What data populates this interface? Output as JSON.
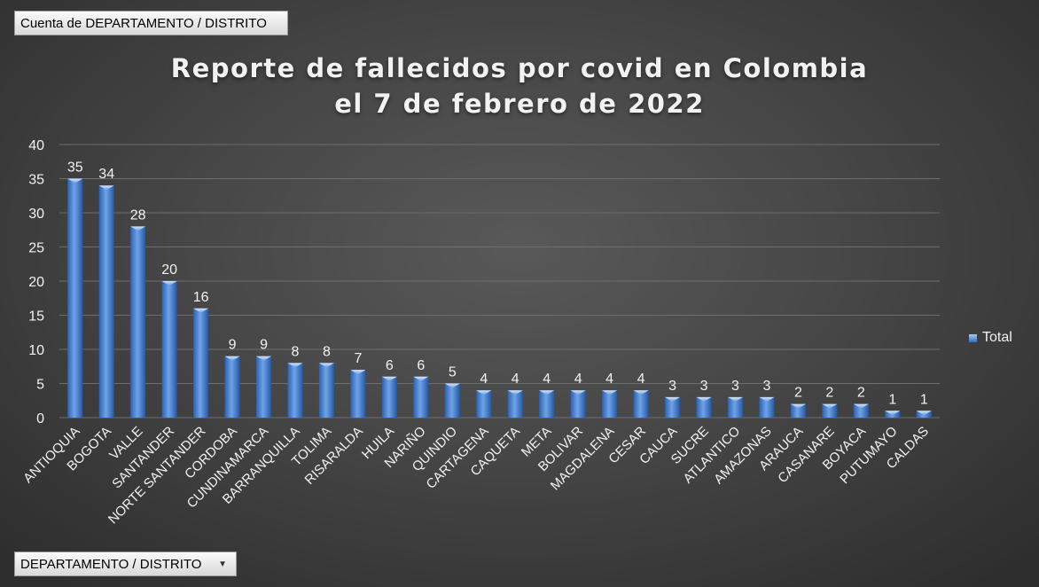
{
  "pivot": {
    "value_field": "Cuenta de DEPARTAMENTO / DISTRITO",
    "axis_field": "DEPARTAMENTO / DISTRITO"
  },
  "colors": {
    "bar_light": "#a9c8f3",
    "bar_dark": "#2f6dc4",
    "background": "#474747",
    "text": "#f2f2f2"
  },
  "chart_data": {
    "type": "bar",
    "title_line1": "Reporte de fallecidos por covid en Colombia",
    "title_line2": "el 7 de febrero de 2022",
    "categories": [
      "ANTIOQUIA",
      "BOGOTA",
      "VALLE",
      "SANTANDER",
      "NORTE SANTANDER",
      "CORDOBA",
      "CUNDINAMARCA",
      "BARRANQUILLA",
      "TOLIMA",
      "RISARALDA",
      "HUILA",
      "NARIÑO",
      "QUINDIO",
      "CARTAGENA",
      "CAQUETA",
      "META",
      "BOLIVAR",
      "MAGDALENA",
      "CESAR",
      "CAUCA",
      "SUCRE",
      "ATLANTICO",
      "AMAZONAS",
      "ARAUCA",
      "CASANARE",
      "BOYACA",
      "PUTUMAYO",
      "CALDAS"
    ],
    "series": [
      {
        "name": "Total",
        "values": [
          35,
          34,
          28,
          20,
          16,
          9,
          9,
          8,
          8,
          7,
          6,
          6,
          5,
          4,
          4,
          4,
          4,
          4,
          4,
          3,
          3,
          3,
          3,
          2,
          2,
          2,
          1,
          1
        ]
      }
    ],
    "yticks": [
      0,
      5,
      10,
      15,
      20,
      25,
      30,
      35,
      40
    ],
    "ylim": [
      0,
      40
    ],
    "grid": true,
    "legend": "right"
  }
}
